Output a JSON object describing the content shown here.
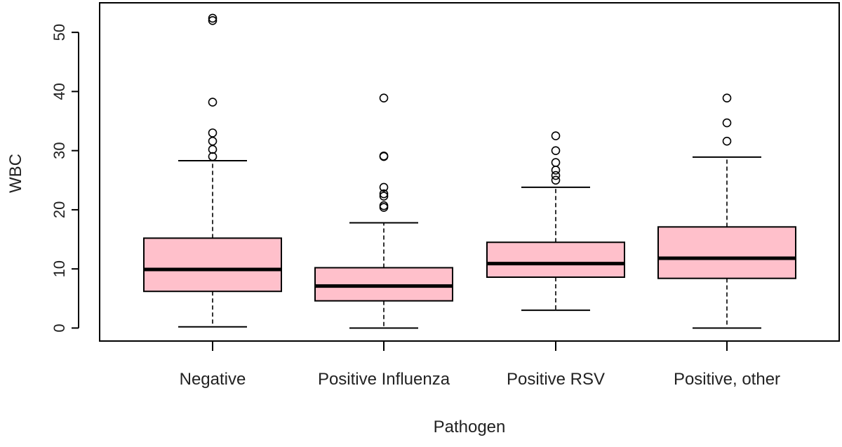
{
  "chart_data": {
    "type": "boxplot",
    "title": "",
    "xlabel": "Pathogen",
    "ylabel": "WBC",
    "ylim": [
      -2.2,
      55.0
    ],
    "yticks": [
      0,
      10,
      20,
      30,
      40,
      50
    ],
    "box_fill": "#ffc0cb",
    "stroke": "#000000",
    "categories": [
      "Negative",
      "Positive Influenza",
      "Positive RSV",
      "Positive, other"
    ],
    "series": [
      {
        "name": "Negative",
        "whisker_low": 0.2,
        "q1": 6.2,
        "median": 9.9,
        "q3": 15.2,
        "whisker_high": 28.3,
        "outliers": [
          29.0,
          30.2,
          31.6,
          33.0,
          38.2,
          52.0,
          52.4
        ]
      },
      {
        "name": "Positive Influenza",
        "whisker_low": 0.0,
        "q1": 4.6,
        "median": 7.1,
        "q3": 10.2,
        "whisker_high": 17.8,
        "outliers": [
          20.4,
          20.7,
          22.3,
          22.7,
          23.8,
          29.0,
          29.1,
          38.9
        ]
      },
      {
        "name": "Positive RSV",
        "whisker_low": 3.0,
        "q1": 8.6,
        "median": 10.9,
        "q3": 14.5,
        "whisker_high": 23.8,
        "outliers": [
          25.0,
          25.8,
          26.7,
          28.0,
          30.0,
          32.5
        ]
      },
      {
        "name": "Positive, other",
        "whisker_low": 0.0,
        "q1": 8.4,
        "median": 11.8,
        "q3": 17.1,
        "whisker_high": 28.9,
        "outliers": [
          31.6,
          34.7,
          38.9
        ]
      }
    ]
  }
}
